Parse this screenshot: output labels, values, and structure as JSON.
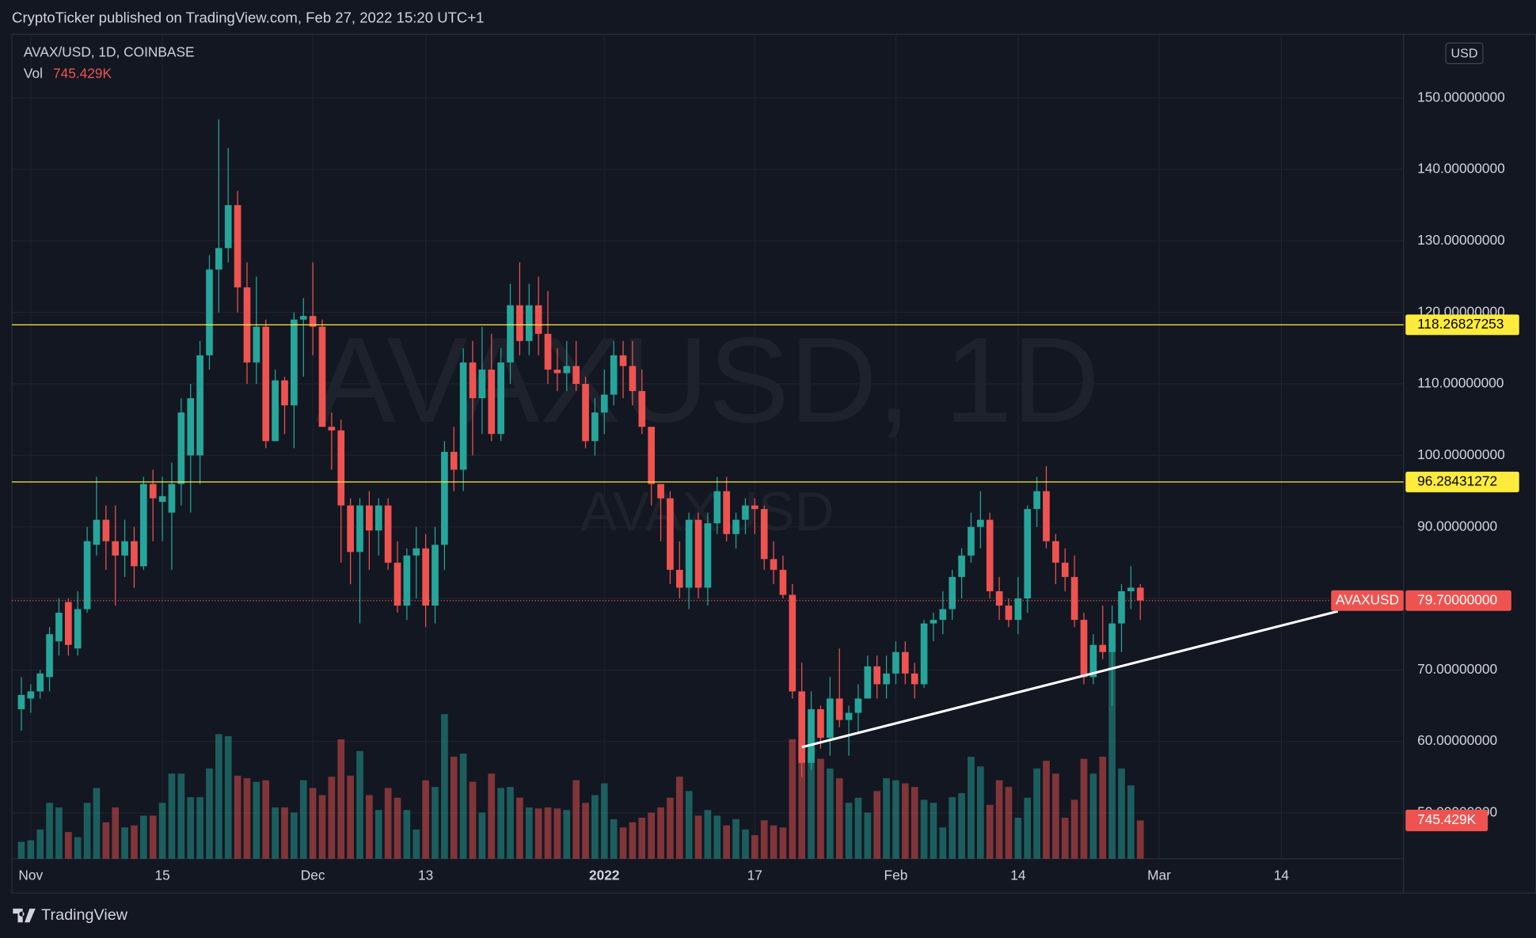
{
  "header": {
    "publisher": "CryptoTicker published on TradingView.com, Feb 27, 2022 15:20 UTC+1"
  },
  "chart_data": {
    "type": "candlestick",
    "symbol": "AVAX/USD, 1D, COINBASE",
    "watermark": "AVAXUSD, 1D",
    "watermark_sub": "AVAXUSD",
    "currency": "USD",
    "x": [
      "2021-10-31",
      "2021-11-01",
      "2021-11-02",
      "2021-11-03",
      "2021-11-04",
      "2021-11-05",
      "2021-11-06",
      "2021-11-07",
      "2021-11-08",
      "2021-11-09",
      "2021-11-10",
      "2021-11-11",
      "2021-11-12",
      "2021-11-13",
      "2021-11-14",
      "2021-11-15",
      "2021-11-16",
      "2021-11-17",
      "2021-11-18",
      "2021-11-19",
      "2021-11-20",
      "2021-11-21",
      "2021-11-22",
      "2021-11-23",
      "2021-11-24",
      "2021-11-25",
      "2021-11-26",
      "2021-11-27",
      "2021-11-28",
      "2021-11-29",
      "2021-11-30",
      "2021-12-01",
      "2021-12-02",
      "2021-12-03",
      "2021-12-04",
      "2021-12-05",
      "2021-12-06",
      "2021-12-07",
      "2021-12-08",
      "2021-12-09",
      "2021-12-10",
      "2021-12-11",
      "2021-12-12",
      "2021-12-13",
      "2021-12-14",
      "2021-12-15",
      "2021-12-16",
      "2021-12-17",
      "2021-12-18",
      "2021-12-19",
      "2021-12-20",
      "2021-12-21",
      "2021-12-22",
      "2021-12-23",
      "2021-12-24",
      "2021-12-25",
      "2021-12-26",
      "2021-12-27",
      "2021-12-28",
      "2021-12-29",
      "2021-12-30",
      "2021-12-31",
      "2022-01-01",
      "2022-01-02",
      "2022-01-03",
      "2022-01-04",
      "2022-01-05",
      "2022-01-06",
      "2022-01-07",
      "2022-01-08",
      "2022-01-09",
      "2022-01-10",
      "2022-01-11",
      "2022-01-12",
      "2022-01-13",
      "2022-01-14",
      "2022-01-15",
      "2022-01-16",
      "2022-01-17",
      "2022-01-18",
      "2022-01-19",
      "2022-01-20",
      "2022-01-21",
      "2022-01-22",
      "2022-01-23",
      "2022-01-24",
      "2022-01-25",
      "2022-01-26",
      "2022-01-27",
      "2022-01-28",
      "2022-01-29",
      "2022-01-30",
      "2022-01-31",
      "2022-02-01",
      "2022-02-02",
      "2022-02-03",
      "2022-02-04",
      "2022-02-05",
      "2022-02-06",
      "2022-02-07",
      "2022-02-08",
      "2022-02-09",
      "2022-02-10",
      "2022-02-11",
      "2022-02-12",
      "2022-02-13",
      "2022-02-14",
      "2022-02-15",
      "2022-02-16",
      "2022-02-17",
      "2022-02-18",
      "2022-02-19",
      "2022-02-20",
      "2022-02-21",
      "2022-02-22",
      "2022-02-23",
      "2022-02-24",
      "2022-02-25",
      "2022-02-26",
      "2022-02-27"
    ],
    "open": [
      64.5,
      66,
      67,
      69,
      74,
      79.5,
      73,
      78.5,
      87.5,
      91,
      88,
      86,
      88,
      84.5,
      96,
      93.5,
      92,
      96,
      100,
      100,
      114,
      126,
      129,
      135,
      123.5,
      113,
      118,
      102,
      110.5,
      107,
      119,
      119.5,
      118,
      104,
      103.5,
      93,
      86.5,
      93,
      89.5,
      93,
      85,
      79,
      86,
      87,
      79,
      87.5,
      100.5,
      98,
      113,
      108,
      112,
      103,
      113,
      121,
      116,
      121,
      117,
      112,
      111.5,
      112.5,
      110,
      102,
      106,
      108.5,
      114,
      112.5,
      109,
      104,
      96,
      94,
      84,
      81.5,
      91,
      81.5,
      90.5,
      95,
      89,
      91,
      93,
      92.5,
      85.5,
      84,
      80.5,
      67,
      57,
      64.5,
      60.5,
      66,
      63,
      64,
      66,
      70.5,
      68,
      69.5,
      72.5,
      69.5,
      68,
      76.5,
      77,
      78.5,
      83,
      86,
      90,
      91,
      81,
      79,
      77,
      80,
      92.5,
      95,
      88,
      85,
      83,
      77,
      69,
      73.5,
      72.5,
      76.5,
      81,
      81.5
    ],
    "high": [
      69,
      68,
      70,
      76,
      80,
      80,
      81,
      90,
      97,
      93,
      93,
      91,
      90,
      97,
      98,
      97,
      99,
      108,
      110,
      116,
      128,
      147,
      143,
      137,
      127,
      125,
      119,
      112,
      111,
      120,
      122,
      127,
      119,
      106,
      105,
      94,
      94,
      95,
      94,
      94,
      88,
      87,
      90,
      89,
      90,
      102,
      104,
      115,
      116,
      118,
      117,
      115,
      124,
      127,
      124,
      125,
      123,
      115,
      116,
      116,
      111,
      108,
      112,
      116,
      116,
      116,
      112,
      104,
      96,
      95,
      88,
      92,
      92,
      92,
      97,
      97,
      92,
      94,
      94,
      93,
      88,
      86,
      82,
      71,
      67,
      65,
      69,
      73,
      65,
      68,
      72,
      72,
      72,
      74,
      74,
      71,
      77,
      78,
      81,
      84,
      87,
      92,
      95,
      92,
      83,
      80,
      83,
      93,
      97,
      98.5,
      89,
      87,
      86,
      78,
      75,
      79,
      79,
      82,
      84.5,
      82
    ],
    "low": [
      61.5,
      64,
      66,
      67,
      72,
      72,
      72,
      78,
      86,
      84,
      79,
      83,
      81.5,
      84,
      88,
      88,
      84,
      93,
      92,
      96,
      112,
      120,
      127,
      120,
      110,
      110,
      101,
      102,
      103,
      101,
      111,
      114,
      104,
      98,
      85,
      82,
      76.5,
      84,
      86,
      84,
      78,
      77,
      80,
      76,
      76.5,
      84,
      95,
      95,
      100,
      103,
      102,
      102,
      110,
      114,
      114,
      114,
      110,
      109,
      109,
      109,
      101,
      100,
      103,
      107,
      108,
      107,
      103,
      93,
      88,
      82,
      80,
      78.5,
      80,
      79,
      89,
      88,
      87,
      89,
      89,
      84,
      82,
      80,
      66,
      55,
      56,
      59,
      58,
      62,
      58,
      61,
      66,
      66,
      66,
      68,
      68,
      66,
      67.5,
      74,
      75,
      77,
      80,
      85,
      87,
      80,
      77,
      76,
      75,
      78,
      90,
      87,
      82,
      81,
      76,
      68,
      68,
      71.5,
      65,
      72.5,
      78.5,
      77
    ],
    "close": [
      66.5,
      67,
      69.5,
      75,
      78,
      73.5,
      78.5,
      88,
      91,
      88,
      86,
      88,
      84.5,
      96,
      94,
      94.3,
      96,
      106,
      108,
      114,
      126,
      129,
      135,
      123.5,
      113,
      118,
      102,
      110.5,
      107,
      119,
      119.5,
      118,
      104,
      103.5,
      93,
      86.5,
      93,
      89.5,
      93,
      85,
      79,
      86,
      87,
      79,
      87.5,
      100.5,
      98,
      113,
      108,
      112,
      103,
      113,
      121,
      116,
      121,
      117,
      112,
      111.5,
      112.5,
      110,
      102,
      106,
      108.5,
      114,
      112.5,
      109,
      104,
      96,
      94,
      84,
      81.5,
      91,
      81.5,
      90.5,
      95,
      89,
      91,
      93,
      92.5,
      85.5,
      84,
      80.5,
      67,
      57,
      64.5,
      60.5,
      66,
      63,
      64,
      66,
      70.5,
      68,
      69.5,
      72.5,
      69.5,
      68,
      76.5,
      77,
      78.5,
      83,
      86,
      90,
      91,
      81,
      79,
      77,
      80,
      92.5,
      95,
      88,
      85,
      83,
      77,
      69,
      73.5,
      72.5,
      76.5,
      81,
      81.5,
      79.7
    ],
    "up_color": "#26a69a",
    "down_color": "#ef5350",
    "volume": {
      "name": "Vol",
      "values": [
        330000,
        360000,
        570000,
        1090000,
        1000000,
        520000,
        420000,
        1090000,
        1380000,
        710000,
        1000000,
        610000,
        650000,
        840000,
        840000,
        1090000,
        1660000,
        1660000,
        1200000,
        1200000,
        1760000,
        2430000,
        2390000,
        1620000,
        1570000,
        1500000,
        1530000,
        1000000,
        1000000,
        900000,
        1530000,
        1380000,
        1240000,
        1600000,
        2330000,
        1620000,
        2100000,
        1240000,
        950000,
        1380000,
        1190000,
        950000,
        570000,
        1530000,
        1400000,
        2820000,
        1990000,
        2050000,
        1500000,
        900000,
        1660000,
        1380000,
        1400000,
        1190000,
        1000000,
        980000,
        1000000,
        980000,
        950000,
        1530000,
        1090000,
        1240000,
        1470000,
        770000,
        610000,
        710000,
        800000,
        900000,
        1000000,
        1190000,
        1600000,
        1320000,
        840000,
        950000,
        840000,
        650000,
        770000,
        570000,
        460000,
        750000,
        650000,
        610000,
        2330000,
        2330000,
        2080000,
        1950000,
        1760000,
        1570000,
        1090000,
        1190000,
        900000,
        1320000,
        1570000,
        1530000,
        1470000,
        1400000,
        1150000,
        1090000,
        610000,
        1200000,
        1280000,
        1990000,
        1800000,
        1050000,
        1530000,
        1400000,
        800000,
        1190000,
        1760000,
        1910000,
        1660000,
        800000,
        1150000,
        1950000,
        1660000,
        1990000,
        4050000,
        1760000,
        1430000,
        745429
      ],
      "last_label": "745.429K"
    },
    "xlim": [
      "2021-10-30",
      "2022-03-27"
    ],
    "xticks": [
      {
        "value": "2021-11-01",
        "label": "Nov"
      },
      {
        "value": "2021-11-15",
        "label": "15"
      },
      {
        "value": "2021-12-01",
        "label": "Dec"
      },
      {
        "value": "2021-12-13",
        "label": "13"
      },
      {
        "value": "2022-01-01",
        "label": "2022"
      },
      {
        "value": "2022-01-17",
        "label": "17"
      },
      {
        "value": "2022-02-01",
        "label": "Feb"
      },
      {
        "value": "2022-02-14",
        "label": "14"
      },
      {
        "value": "2022-03-01",
        "label": "Mar"
      },
      {
        "value": "2022-03-14",
        "label": "14"
      }
    ],
    "ylim": [
      43.6,
      158.9
    ],
    "yticks": [
      {
        "value": 50,
        "label": "50.00000000"
      },
      {
        "value": 60,
        "label": "60.00000000"
      },
      {
        "value": 70,
        "label": "70.00000000"
      },
      {
        "value": 80,
        "label": "80.00000000"
      },
      {
        "value": 90,
        "label": "90.00000000"
      },
      {
        "value": 100,
        "label": "100.00000000"
      },
      {
        "value": 110,
        "label": "110.00000000"
      },
      {
        "value": 120,
        "label": "120.00000000"
      },
      {
        "value": 130,
        "label": "130.00000000"
      },
      {
        "value": 140,
        "label": "140.00000000"
      },
      {
        "value": 150,
        "label": "150.00000000"
      }
    ],
    "grid": true,
    "last_price": {
      "name": "AVAXUSD",
      "value": 79.7,
      "label": "79.70000000"
    },
    "levels": [
      {
        "value": 118.26827253,
        "color": "#ffeb3b"
      },
      {
        "value": 96.28431272,
        "color": "#ffeb3b"
      }
    ],
    "trendline": {
      "x": [
        "2022-01-22",
        "2022-03-20"
      ],
      "y": [
        59.2,
        78.2
      ],
      "color": "#ffffff"
    }
  },
  "footer": {
    "brand": "TradingView"
  }
}
